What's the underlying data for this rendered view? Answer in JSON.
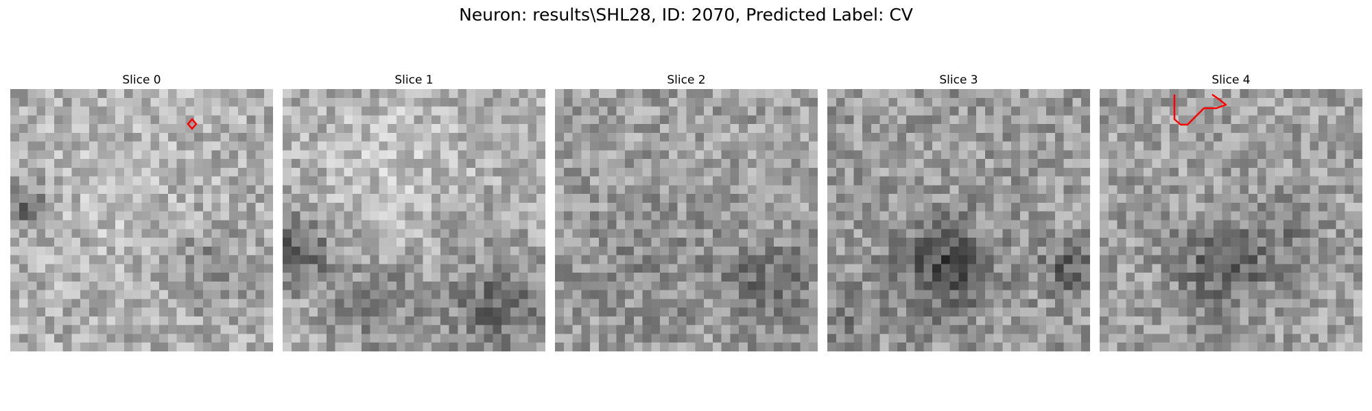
{
  "figure": {
    "title": "Neuron: results\\SHL28, ID: 2070, Predicted Label: CV"
  },
  "colors": {
    "contour": "#ff0000",
    "background": "#ffffff"
  },
  "grid_size": 30,
  "slices": [
    {
      "title": "Slice 0"
    },
    {
      "title": "Slice 1"
    },
    {
      "title": "Slice 2"
    },
    {
      "title": "Slice 3"
    },
    {
      "title": "Slice 4"
    }
  ]
}
